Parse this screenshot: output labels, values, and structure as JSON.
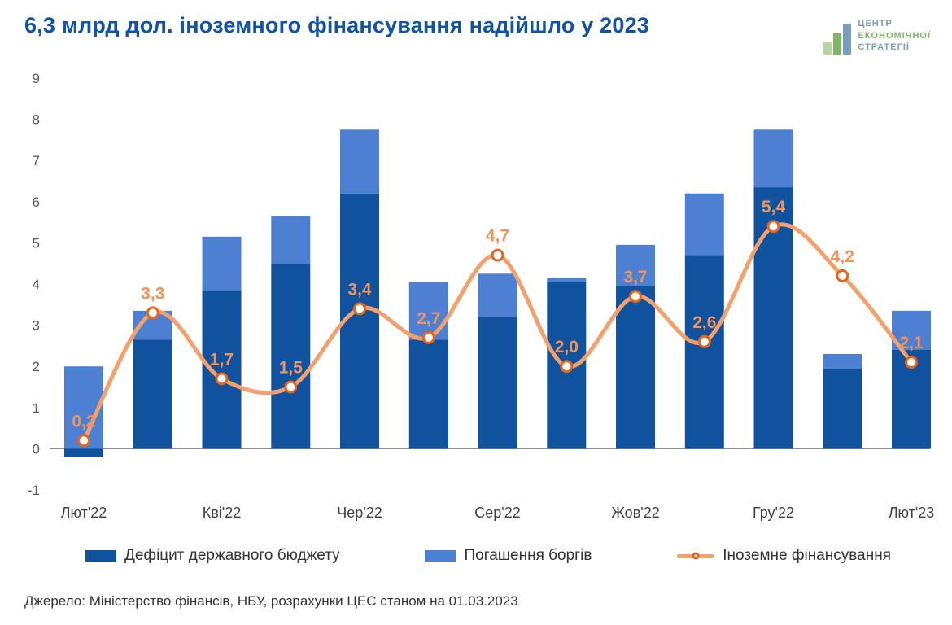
{
  "header": {
    "title": "6,3 млрд дол. іноземного фінансування надійшло у 2023",
    "logo": {
      "line1": "ЦЕНТР",
      "line2": "ЕКОНОМІЧНОЇ",
      "line3": "СТРАТЕГІЇ"
    }
  },
  "footer": {
    "source": "Джерело: Міністерство фінансів, НБУ, розрахунки ЦЕС станом на 01.03.2023"
  },
  "colors": {
    "title_blue": "#1353A5",
    "logo_blue": "#7C9DBA",
    "logo_green": "#7FB56A",
    "logo_green_light": "#B9D6A2",
    "axis_gray": "#595959"
  },
  "chart_data": {
    "type": "bar",
    "subtype": "stacked-bars-with-smooth-line-overlay",
    "title": "6,3 млрд дол. іноземного фінансування надійшло у 2023",
    "ylim": [
      -1,
      9
    ],
    "y_ticks": [
      9,
      8,
      7,
      6,
      5,
      4,
      3,
      2,
      1,
      0,
      -1
    ],
    "n_points": 13,
    "x_tick_labels": [
      "Лют'22",
      "Кві'22",
      "Чер'22",
      "Сер'22",
      "Жов'22",
      "Гру'22",
      "Лют'23"
    ],
    "x_tick_positions": [
      0,
      2,
      4,
      6,
      8,
      10,
      12
    ],
    "grid": false,
    "legend_position": "bottom",
    "series": [
      {
        "name": "Дефіцит державного бюджету",
        "type": "bar",
        "stack": true,
        "color": "#10529E",
        "values": [
          -0.2,
          2.65,
          3.85,
          4.5,
          6.2,
          2.65,
          3.2,
          4.05,
          3.95,
          4.7,
          6.35,
          1.95,
          2.4
        ]
      },
      {
        "name": "Погашення боргів",
        "type": "bar",
        "stack": true,
        "color": "#4D80D2",
        "values": [
          2.0,
          0.7,
          1.3,
          1.15,
          1.55,
          1.4,
          1.05,
          0.1,
          1.0,
          1.5,
          1.4,
          0.35,
          0.95
        ]
      },
      {
        "name": "Іноземне фінансування",
        "type": "line",
        "color": "#F2A06C",
        "marker_border": "#E2661F",
        "label_color": "#F0945C",
        "values": [
          0.2,
          3.3,
          1.7,
          1.5,
          3.4,
          2.7,
          4.7,
          2.0,
          3.7,
          2.6,
          5.4,
          4.2,
          2.1
        ],
        "labels": [
          "0,2",
          "3,3",
          "1,7",
          "1,5",
          "3,4",
          "2,7",
          "4,7",
          "2,0",
          "3,7",
          "2,6",
          "5,4",
          "4,2",
          "2,1"
        ]
      }
    ]
  }
}
